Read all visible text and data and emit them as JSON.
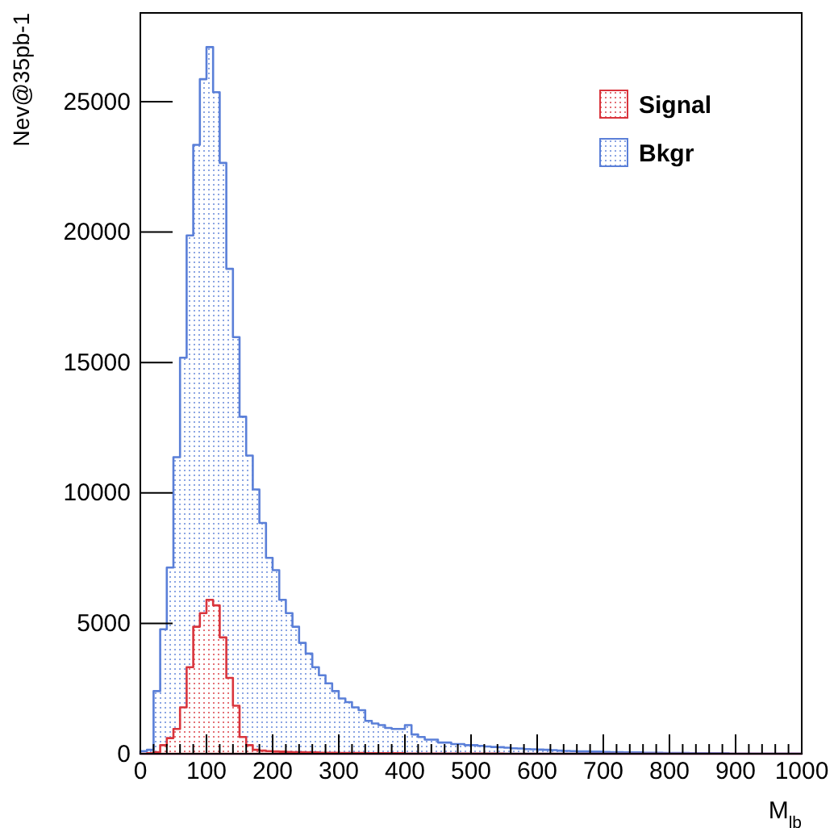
{
  "chart_data": {
    "type": "histogram",
    "xlabel": "M$_{lb}$",
    "ylabel": "Nev@35pb-1",
    "bins": [
      0,
      10,
      20,
      30,
      40,
      50,
      60,
      70,
      80,
      90,
      100,
      110,
      120,
      130,
      140,
      150,
      160,
      170,
      180,
      190,
      200,
      210,
      220,
      230,
      240,
      250,
      260,
      270,
      280,
      290,
      300,
      310,
      320,
      330,
      340,
      350,
      360,
      370,
      380,
      390,
      400,
      410,
      420,
      430,
      440,
      450,
      460,
      470,
      480,
      490,
      500,
      510,
      520,
      530,
      540,
      550,
      560,
      570,
      580,
      590,
      600,
      610,
      620,
      630,
      640,
      650,
      660,
      670,
      680,
      690,
      700,
      710,
      720,
      730,
      740,
      750,
      760,
      770,
      780,
      790,
      800,
      810,
      820,
      830,
      840,
      850,
      860,
      870,
      880,
      890,
      900,
      910,
      920,
      930,
      940,
      950,
      960,
      970,
      980,
      990,
      1000
    ],
    "series": [
      {
        "name": "Bkgr",
        "color": "#5a7fd8",
        "values": [
          100,
          150,
          2400,
          4770,
          7140,
          11370,
          15180,
          19870,
          23340,
          25860,
          27090,
          25360,
          22650,
          18590,
          15970,
          12920,
          11430,
          10130,
          8850,
          7510,
          7040,
          5900,
          5390,
          4870,
          4250,
          3840,
          3320,
          3010,
          2700,
          2400,
          2120,
          1980,
          1780,
          1670,
          1260,
          1160,
          1100,
          990,
          950,
          950,
          1100,
          740,
          640,
          540,
          540,
          430,
          430,
          370,
          370,
          330,
          330,
          300,
          280,
          260,
          250,
          230,
          210,
          200,
          180,
          170,
          160,
          150,
          140,
          120,
          110,
          100,
          90,
          90,
          80,
          80,
          70,
          60,
          60,
          50,
          50,
          50,
          40,
          40,
          40,
          30,
          30,
          30,
          30,
          20,
          20,
          20,
          20,
          20,
          20,
          10,
          10,
          10,
          10,
          10,
          10,
          10,
          10,
          10,
          10,
          10
        ]
      },
      {
        "name": "Signal",
        "color": "#d9343c",
        "values": [
          0,
          20,
          60,
          330,
          600,
          950,
          1780,
          3320,
          4870,
          5390,
          5900,
          5690,
          4460,
          2910,
          1840,
          640,
          330,
          150,
          120,
          100,
          90,
          80,
          70,
          60,
          60,
          50,
          50,
          40,
          40,
          40,
          30,
          30,
          30,
          30,
          20,
          20,
          20,
          20,
          20,
          20,
          10,
          10,
          10,
          10,
          10,
          10,
          10,
          10,
          10,
          10,
          10,
          10,
          10,
          10,
          10,
          0,
          0,
          0,
          0,
          0,
          0,
          0,
          0,
          0,
          0,
          0,
          0,
          0,
          0,
          0,
          0,
          0,
          0,
          0,
          0,
          0,
          0,
          0,
          0,
          0,
          0,
          0,
          0,
          0,
          0,
          0,
          0,
          0,
          0,
          0,
          0,
          0,
          0,
          0,
          0,
          0,
          0,
          0,
          0,
          0
        ]
      }
    ],
    "xlim": [
      0,
      1000
    ],
    "xticks": [
      0,
      {
        "value": 20,
        "label": null
      },
      {
        "value": 40,
        "label": null
      },
      {
        "value": 60,
        "label": null
      },
      {
        "value": 80,
        "label": null
      },
      100,
      {
        "value": 120,
        "label": null
      },
      {
        "value": 140,
        "label": null
      },
      {
        "value": 160,
        "label": null
      },
      {
        "value": 180,
        "label": null
      },
      200,
      {
        "value": 220,
        "label": null
      },
      {
        "value": 240,
        "label": null
      },
      {
        "value": 260,
        "label": null
      },
      {
        "value": 280,
        "label": null
      },
      300,
      {
        "value": 320,
        "label": null
      },
      {
        "value": 340,
        "label": null
      },
      {
        "value": 360,
        "label": null
      },
      {
        "value": 380,
        "label": null
      },
      400,
      {
        "value": 420,
        "label": null
      },
      {
        "value": 440,
        "label": null
      },
      {
        "value": 460,
        "label": null
      },
      {
        "value": 480,
        "label": null
      },
      500,
      {
        "value": 520,
        "label": null
      },
      {
        "value": 540,
        "label": null
      },
      {
        "value": 560,
        "label": null
      },
      {
        "value": 580,
        "label": null
      },
      600,
      {
        "value": 620,
        "label": null
      },
      {
        "value": 640,
        "label": null
      },
      {
        "value": 660,
        "label": null
      },
      {
        "value": 680,
        "label": null
      },
      700,
      {
        "value": 720,
        "label": null
      },
      {
        "value": 740,
        "label": null
      },
      {
        "value": 760,
        "label": null
      },
      {
        "value": 780,
        "label": null
      },
      800,
      {
        "value": 820,
        "label": null
      },
      {
        "value": 840,
        "label": null
      },
      {
        "value": 860,
        "label": null
      },
      {
        "value": 880,
        "label": null
      },
      900,
      {
        "value": 920,
        "label": null
      },
      {
        "value": 940,
        "label": null
      },
      {
        "value": 960,
        "label": null
      },
      {
        "value": 980,
        "label": null
      },
      1000
    ],
    "ylim": [
      0,
      28400
    ],
    "yticks": [
      0,
      5000,
      10000,
      15000,
      20000,
      25000
    ],
    "legend": "top right"
  }
}
